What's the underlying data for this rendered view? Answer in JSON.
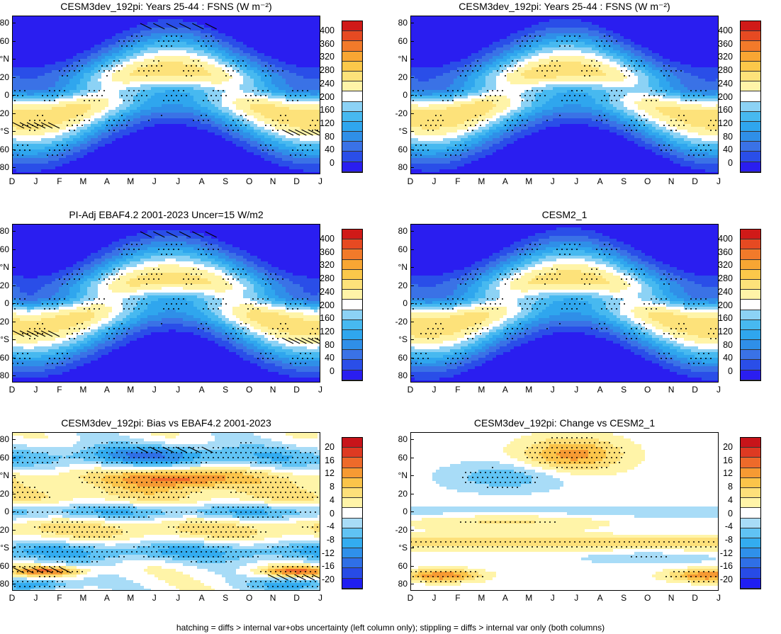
{
  "colors": {
    "abs_scale": [
      "#2a1ef0",
      "#2a4ee8",
      "#3a72e6",
      "#2f8fe8",
      "#2fa6ee",
      "#47b9f0",
      "#8cd2f5",
      "#ffffff",
      "#fff4a8",
      "#fde27a",
      "#fbc84a",
      "#f8a633",
      "#f27a2a",
      "#e64a22",
      "#d01a18"
    ],
    "diff_scale": [
      "#1f1ef2",
      "#274be6",
      "#2f6fe6",
      "#2f90ea",
      "#33acf0",
      "#60c3f4",
      "#a8dcf7",
      "#ffffff",
      "#fff4a8",
      "#fde07a",
      "#fbc44a",
      "#f69a33",
      "#ee6a2a",
      "#de3a22",
      "#c8141a"
    ]
  },
  "footer": "hatching = diffs > internal var+obs uncertainty (left column only); stippling = diffs > internal var only (both columns)",
  "panels": [
    {
      "title": "CESM3dev_192pi: Years 25-44 : FSNS (W m⁻²)",
      "cbar": [
        "400",
        "360",
        "320",
        "280",
        "240",
        "200",
        "160",
        "120",
        "80",
        "40",
        "0"
      ]
    },
    {
      "title": "CESM3dev_192pi: Years 25-44 : FSNS (W m⁻²)",
      "cbar": [
        "400",
        "360",
        "320",
        "280",
        "240",
        "200",
        "160",
        "120",
        "80",
        "40",
        "0"
      ]
    },
    {
      "title": "PI-Adj EBAF4.2 2001-2023 Uncer=15 W/m2",
      "cbar": [
        "400",
        "360",
        "320",
        "280",
        "240",
        "200",
        "160",
        "120",
        "80",
        "40",
        "0"
      ]
    },
    {
      "title": "CESM2_1",
      "cbar": [
        "400",
        "360",
        "320",
        "280",
        "240",
        "200",
        "160",
        "120",
        "80",
        "40",
        "0"
      ]
    },
    {
      "title": "CESM3dev_192pi: Bias vs EBAF4.2 2001-2023",
      "cbar": [
        "20",
        "16",
        "12",
        "8",
        "4",
        "0",
        "-4",
        "-8",
        "-12",
        "-16",
        "-20"
      ]
    },
    {
      "title": "CESM3dev_192pi: Change vs CESM2_1",
      "cbar": [
        "20",
        "16",
        "12",
        "8",
        "4",
        "0",
        "-4",
        "-8",
        "-12",
        "-16",
        "-20"
      ]
    }
  ],
  "chart_data": [
    {
      "type": "heatmap",
      "title": "CESM3dev_192pi: Years 25-44 : FSNS (W m⁻²)",
      "xlabel": "",
      "ylabel": "",
      "x_ticks": [
        "D",
        "J",
        "F",
        "M",
        "A",
        "M",
        "J",
        "J",
        "A",
        "S",
        "O",
        "N",
        "D",
        "J"
      ],
      "y_ticks": [
        "80",
        "60",
        "°N",
        "20",
        "0",
        "-20",
        "°S",
        "60",
        "80"
      ],
      "colorbar": [
        400,
        360,
        320,
        280,
        240,
        200,
        160,
        120,
        80,
        40,
        0
      ],
      "summary": {
        "max_band": "subtropics summer ~280-320",
        "min_band": "polar winter ~0"
      }
    },
    {
      "type": "heatmap",
      "title": "CESM3dev_192pi: Years 25-44 : FSNS (W m⁻²)",
      "x_ticks": [
        "D",
        "J",
        "F",
        "M",
        "A",
        "M",
        "J",
        "J",
        "A",
        "S",
        "O",
        "N",
        "D",
        "J"
      ],
      "y_ticks": [
        "80",
        "60",
        "°N",
        "20",
        "0",
        "-20",
        "°S",
        "60",
        "80"
      ],
      "colorbar": [
        400,
        360,
        320,
        280,
        240,
        200,
        160,
        120,
        80,
        40,
        0
      ]
    },
    {
      "type": "heatmap",
      "title": "PI-Adj EBAF4.2 2001-2023 Uncer=15 W/m2",
      "x_ticks": [
        "D",
        "J",
        "F",
        "M",
        "A",
        "M",
        "J",
        "J",
        "A",
        "S",
        "O",
        "N",
        "D",
        "J"
      ],
      "y_ticks": [
        "80",
        "60",
        "°N",
        "20",
        "0",
        "-20",
        "°S",
        "60",
        "80"
      ],
      "colorbar": [
        400,
        360,
        320,
        280,
        240,
        200,
        160,
        120,
        80,
        40,
        0
      ]
    },
    {
      "type": "heatmap",
      "title": "CESM2_1",
      "x_ticks": [
        "D",
        "J",
        "F",
        "M",
        "A",
        "M",
        "J",
        "J",
        "A",
        "S",
        "O",
        "N",
        "D",
        "J"
      ],
      "y_ticks": [
        "80",
        "60",
        "°N",
        "20",
        "0",
        "-20",
        "°S",
        "60",
        "80"
      ],
      "colorbar": [
        400,
        360,
        320,
        280,
        240,
        200,
        160,
        120,
        80,
        40,
        0
      ]
    },
    {
      "type": "heatmap",
      "title": "CESM3dev_192pi: Bias vs EBAF4.2 2001-2023",
      "x_ticks": [
        "D",
        "J",
        "F",
        "M",
        "A",
        "M",
        "J",
        "J",
        "A",
        "S",
        "O",
        "N",
        "D",
        "J"
      ],
      "y_ticks": [
        "80",
        "60",
        "°N",
        "20",
        "0",
        "-20",
        "°S",
        "60",
        "80"
      ],
      "colorbar": [
        20,
        16,
        12,
        8,
        4,
        0,
        -4,
        -8,
        -12,
        -16,
        -20
      ]
    },
    {
      "type": "heatmap",
      "title": "CESM3dev_192pi: Change vs CESM2_1",
      "x_ticks": [
        "D",
        "J",
        "F",
        "M",
        "A",
        "M",
        "J",
        "J",
        "A",
        "S",
        "O",
        "N",
        "D",
        "J"
      ],
      "y_ticks": [
        "80",
        "60",
        "°N",
        "20",
        "0",
        "-20",
        "°S",
        "60",
        "80"
      ],
      "colorbar": [
        20,
        16,
        12,
        8,
        4,
        0,
        -4,
        -8,
        -12,
        -16,
        -20
      ]
    }
  ],
  "axes": {
    "x_ticks": [
      "D",
      "J",
      "F",
      "M",
      "A",
      "M",
      "J",
      "J",
      "A",
      "S",
      "O",
      "N",
      "D",
      "J"
    ],
    "y_ticks": [
      "80",
      "60",
      "°N",
      "20",
      "0",
      "-20",
      "°S",
      "60",
      "80"
    ]
  }
}
